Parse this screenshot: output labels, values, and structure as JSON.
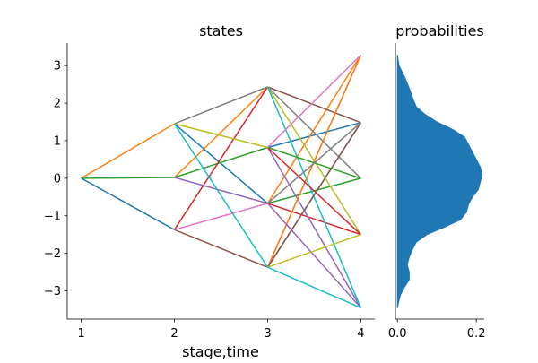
{
  "chart_data": [
    {
      "type": "line",
      "title": "states",
      "xlabel": "stage,time",
      "ylabel": "",
      "x_ticks": [
        1,
        2,
        3,
        4
      ],
      "y_ticks": [
        -3,
        -2,
        -1,
        0,
        1,
        2,
        3
      ],
      "xlim": [
        0.85,
        4.15
      ],
      "ylim": [
        -3.75,
        3.6
      ],
      "grid": false,
      "legend": "none",
      "nodes": {
        "1": [
          0.0
        ],
        "2": [
          1.45,
          0.02,
          -1.37
        ],
        "3": [
          2.43,
          0.82,
          -0.67,
          -2.37
        ],
        "4": [
          3.28,
          1.48,
          0.0,
          -1.5,
          -3.45
        ]
      },
      "series": [
        {
          "color": "#1f77b4",
          "x": [
            1,
            2
          ],
          "y": [
            0.0,
            -1.37
          ]
        },
        {
          "color": "#ff7f0e",
          "x": [
            1,
            2
          ],
          "y": [
            0.0,
            1.45
          ]
        },
        {
          "color": "#2ca02c",
          "x": [
            1,
            2
          ],
          "y": [
            0.0,
            0.02
          ]
        },
        {
          "color": "#1f77b4",
          "x": [
            2,
            3
          ],
          "y": [
            1.45,
            -0.67
          ]
        },
        {
          "color": "#ff7f0e",
          "x": [
            2,
            3
          ],
          "y": [
            0.02,
            2.43
          ]
        },
        {
          "color": "#2ca02c",
          "x": [
            2,
            3
          ],
          "y": [
            0.02,
            0.82
          ]
        },
        {
          "color": "#d62728",
          "x": [
            2,
            3
          ],
          "y": [
            -1.37,
            2.43
          ]
        },
        {
          "color": "#9467bd",
          "x": [
            2,
            3
          ],
          "y": [
            0.02,
            -0.67
          ]
        },
        {
          "color": "#8c564b",
          "x": [
            2,
            3
          ],
          "y": [
            -1.37,
            -2.37
          ]
        },
        {
          "color": "#e377c2",
          "x": [
            2,
            3
          ],
          "y": [
            -1.37,
            -0.67
          ]
        },
        {
          "color": "#7f7f7f",
          "x": [
            2,
            3
          ],
          "y": [
            1.45,
            2.43
          ]
        },
        {
          "color": "#bcbd22",
          "x": [
            2,
            3
          ],
          "y": [
            1.45,
            0.82
          ]
        },
        {
          "color": "#17becf",
          "x": [
            2,
            3
          ],
          "y": [
            1.45,
            -2.37
          ]
        },
        {
          "color": "#1f77b4",
          "x": [
            3,
            4
          ],
          "y": [
            0.82,
            1.48
          ]
        },
        {
          "color": "#ff7f0e",
          "x": [
            3,
            4
          ],
          "y": [
            -0.67,
            3.28
          ]
        },
        {
          "color": "#2ca02c",
          "x": [
            3,
            4
          ],
          "y": [
            -0.67,
            0.0
          ]
        },
        {
          "color": "#d62728",
          "x": [
            3,
            4
          ],
          "y": [
            -0.67,
            -1.5
          ]
        },
        {
          "color": "#9467bd",
          "x": [
            3,
            4
          ],
          "y": [
            0.82,
            -3.45
          ]
        },
        {
          "color": "#8c564b",
          "x": [
            3,
            4
          ],
          "y": [
            2.43,
            1.48
          ]
        },
        {
          "color": "#e377c2",
          "x": [
            3,
            4
          ],
          "y": [
            -2.37,
            3.28
          ]
        },
        {
          "color": "#7f7f7f",
          "x": [
            3,
            4
          ],
          "y": [
            2.43,
            0.0
          ]
        },
        {
          "color": "#bcbd22",
          "x": [
            3,
            4
          ],
          "y": [
            2.43,
            -1.5
          ]
        },
        {
          "color": "#17becf",
          "x": [
            3,
            4
          ],
          "y": [
            2.43,
            -3.45
          ]
        },
        {
          "color": "#1f77b4",
          "x": [
            3,
            4
          ],
          "y": [
            -2.37,
            1.48
          ]
        },
        {
          "color": "#ff7f0e",
          "x": [
            3,
            4
          ],
          "y": [
            -2.37,
            3.28
          ]
        },
        {
          "color": "#2ca02c",
          "x": [
            3,
            4
          ],
          "y": [
            0.82,
            0.0
          ]
        },
        {
          "color": "#d62728",
          "x": [
            3,
            4
          ],
          "y": [
            0.82,
            -1.5
          ]
        },
        {
          "color": "#9467bd",
          "x": [
            3,
            4
          ],
          "y": [
            -0.67,
            -3.45
          ]
        },
        {
          "color": "#8c564b",
          "x": [
            3,
            4
          ],
          "y": [
            -2.37,
            1.48
          ]
        },
        {
          "color": "#e377c2",
          "x": [
            3,
            4
          ],
          "y": [
            0.82,
            3.28
          ]
        },
        {
          "color": "#7f7f7f",
          "x": [
            3,
            4
          ],
          "y": [
            -0.67,
            1.48
          ]
        },
        {
          "color": "#bcbd22",
          "x": [
            3,
            4
          ],
          "y": [
            -2.37,
            -1.5
          ]
        },
        {
          "color": "#17becf",
          "x": [
            3,
            4
          ],
          "y": [
            -2.37,
            -3.45
          ]
        }
      ]
    },
    {
      "type": "area",
      "title": "probabilities",
      "xlabel": "",
      "ylabel": "",
      "x_ticks": [
        0.0,
        0.2
      ],
      "x_tick_labels": [
        "0.0",
        "0.2"
      ],
      "xlim": [
        -0.005,
        0.22
      ],
      "ylim": [
        -3.75,
        3.6
      ],
      "grid": false,
      "color": "#1f77b4",
      "density": {
        "y": [
          3.28,
          3.0,
          2.7,
          2.4,
          2.1,
          1.9,
          1.7,
          1.5,
          1.3,
          1.1,
          0.9,
          0.7,
          0.5,
          0.3,
          0.1,
          -0.1,
          -0.3,
          -0.5,
          -0.7,
          -0.9,
          -1.1,
          -1.3,
          -1.5,
          -1.7,
          -1.9,
          -2.1,
          -2.3,
          -2.5,
          -2.7,
          -2.9,
          -3.1,
          -3.3,
          -3.45
        ],
        "value": [
          0.0,
          0.004,
          0.018,
          0.03,
          0.04,
          0.048,
          0.07,
          0.1,
          0.14,
          0.17,
          0.18,
          0.19,
          0.2,
          0.21,
          0.215,
          0.21,
          0.205,
          0.19,
          0.18,
          0.175,
          0.16,
          0.12,
          0.075,
          0.048,
          0.038,
          0.03,
          0.025,
          0.03,
          0.03,
          0.018,
          0.008,
          0.003,
          0.0
        ]
      }
    }
  ]
}
